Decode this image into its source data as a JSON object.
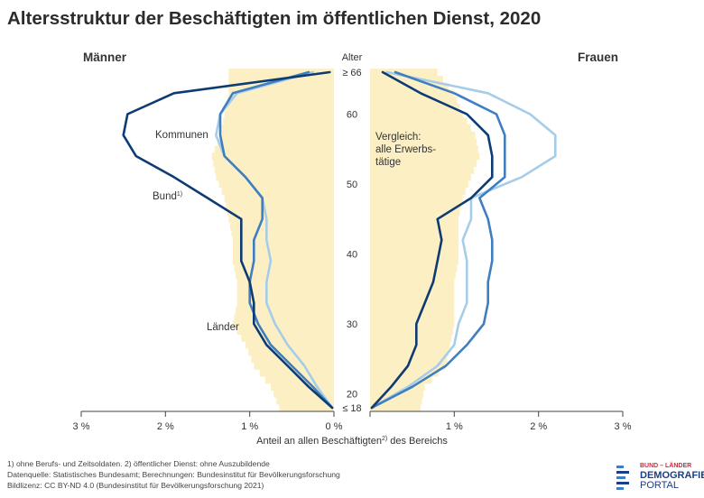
{
  "title": "Altersstruktur der Beschäftigten im öffentlichen Dienst, 2020",
  "labels": {
    "left_panel": "Männer",
    "right_panel": "Frauen",
    "age_axis_title": "Alter",
    "x_axis_title_pre": "Anteil an allen Beschäftigten",
    "x_axis_title_sup": "2)",
    "x_axis_title_post": " des Bereichs",
    "series_kommunen": "Kommunen",
    "series_bund": "Bund",
    "series_bund_sup": "1)",
    "series_laender": "Länder",
    "compare_line1": "Vergleich:",
    "compare_line2": "alle Erwerbs-",
    "compare_line3": "tätige"
  },
  "footnotes": {
    "line1": "1) ohne Berufs- und Zeitsoldaten. 2) öffentlicher Dienst: ohne Auszubildende",
    "line2": "Datenquelle: Statistisches Bundesamt; Berechnungen: Bundesinstitut für Bevölkerungsforschung",
    "line3": "Bildlizenz: CC BY-ND 4.0 (Bundesinstitut für Bevölkerungsforschung 2021)"
  },
  "logo": {
    "line1": "BUND – LÄNDER",
    "line2": "DEMOGRAFIE",
    "line3": "PORTAL"
  },
  "colors": {
    "bund": "#0d3b73",
    "laender": "#3f7fc1",
    "kommunen": "#a6cde8",
    "all_workers_fill": "#fdefc4",
    "axis": "#444444"
  },
  "chart_data": {
    "type": "line",
    "orientation": "population pyramid (share by single year of age)",
    "age_axis": {
      "min": 18,
      "max": 66,
      "ticks": [
        20,
        30,
        40,
        50,
        60
      ],
      "bottom_label": "≤ 18",
      "top_label": "≥ 66"
    },
    "x_axis": {
      "unit": "%",
      "range": [
        0,
        3
      ],
      "ticks": [
        "3 %",
        "2 %",
        "1 %",
        "0 %",
        "1 %",
        "2 %",
        "3 %"
      ]
    },
    "ages": [
      18,
      21,
      24,
      27,
      30,
      33,
      36,
      39,
      42,
      45,
      48,
      51,
      54,
      57,
      60,
      63,
      66
    ],
    "maenner": {
      "alle_erwerbstaetige": [
        0.65,
        0.75,
        0.95,
        1.05,
        1.2,
        1.15,
        1.15,
        1.2,
        1.2,
        1.25,
        1.3,
        1.4,
        1.45,
        1.35,
        1.3,
        1.25,
        1.25
      ],
      "bund": [
        0.02,
        0.3,
        0.55,
        0.8,
        0.95,
        0.95,
        1.0,
        1.1,
        1.1,
        1.1,
        1.5,
        1.9,
        2.35,
        2.5,
        2.45,
        1.9,
        0.05
      ],
      "laender": [
        0.02,
        0.25,
        0.5,
        0.75,
        0.9,
        1.0,
        1.0,
        0.95,
        0.95,
        0.85,
        0.85,
        1.05,
        1.3,
        1.35,
        1.35,
        1.2,
        0.3
      ],
      "kommunen": [
        0.02,
        0.2,
        0.35,
        0.55,
        0.7,
        0.8,
        0.8,
        0.75,
        0.8,
        0.8,
        0.85,
        1.05,
        1.3,
        1.4,
        1.35,
        1.15,
        0.25
      ]
    },
    "frauen": {
      "alle_erwerbstaetige": [
        0.6,
        0.65,
        0.9,
        0.95,
        1.0,
        1.0,
        1.0,
        1.05,
        1.05,
        1.05,
        1.1,
        1.2,
        1.3,
        1.25,
        1.1,
        1.0,
        0.8
      ],
      "bund": [
        0.02,
        0.25,
        0.45,
        0.55,
        0.55,
        0.65,
        0.75,
        0.8,
        0.85,
        0.8,
        1.2,
        1.45,
        1.45,
        1.4,
        1.15,
        0.6,
        0.15
      ],
      "laender": [
        0.02,
        0.5,
        0.9,
        1.15,
        1.35,
        1.4,
        1.4,
        1.45,
        1.45,
        1.4,
        1.3,
        1.6,
        1.6,
        1.6,
        1.5,
        1.0,
        0.3
      ],
      "kommunen": [
        0.02,
        0.45,
        0.8,
        1.0,
        1.05,
        1.15,
        1.15,
        1.15,
        1.1,
        1.2,
        1.2,
        1.8,
        2.2,
        2.2,
        1.9,
        1.4,
        0.2
      ]
    }
  }
}
